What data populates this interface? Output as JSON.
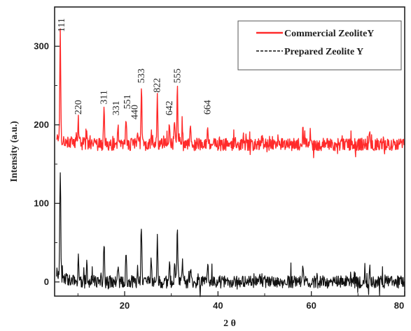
{
  "chart_data": {
    "type": "line",
    "title": "",
    "xlabel": "2 θ",
    "ylabel": "Intensity (a.u.)",
    "xlim": [
      5,
      80
    ],
    "ylim": [
      -18,
      350
    ],
    "x_ticks": [
      20,
      40,
      60,
      80
    ],
    "y_ticks": [
      0,
      100,
      200,
      300
    ],
    "grid": false,
    "legend_position": "top-right",
    "legend": [
      {
        "label": "Commercial ZeoliteY",
        "color": "#ff2a2a",
        "style": "solid"
      },
      {
        "label": "Prepared Zeolite Y",
        "color": "#111111",
        "style": "dashed"
      }
    ],
    "series": [
      {
        "name": "Commercial ZeoliteY",
        "color": "#ff2a2a",
        "baseline": 175,
        "peaks": [
          {
            "x": 6.2,
            "y": 313
          },
          {
            "x": 10.1,
            "y": 200
          },
          {
            "x": 11.9,
            "y": 190
          },
          {
            "x": 15.6,
            "y": 220
          },
          {
            "x": 18.6,
            "y": 200
          },
          {
            "x": 20.3,
            "y": 210
          },
          {
            "x": 22.8,
            "y": 195
          },
          {
            "x": 23.6,
            "y": 245
          },
          {
            "x": 25.7,
            "y": 190
          },
          {
            "x": 27.0,
            "y": 235
          },
          {
            "x": 29.6,
            "y": 200
          },
          {
            "x": 30.7,
            "y": 210
          },
          {
            "x": 31.3,
            "y": 245
          },
          {
            "x": 32.4,
            "y": 198
          },
          {
            "x": 34.1,
            "y": 195
          },
          {
            "x": 37.8,
            "y": 200
          },
          {
            "x": 58.2,
            "y": 196
          },
          {
            "x": 72.5,
            "y": 190
          }
        ]
      },
      {
        "name": "Prepared Zeolite Y",
        "color": "#111111",
        "baseline": 0,
        "peaks": [
          {
            "x": 6.2,
            "y": 140
          },
          {
            "x": 10.1,
            "y": 30
          },
          {
            "x": 11.9,
            "y": 20
          },
          {
            "x": 15.6,
            "y": 45
          },
          {
            "x": 18.6,
            "y": 25
          },
          {
            "x": 20.3,
            "y": 35
          },
          {
            "x": 22.8,
            "y": 20
          },
          {
            "x": 23.6,
            "y": 70
          },
          {
            "x": 25.7,
            "y": 20
          },
          {
            "x": 27.0,
            "y": 58
          },
          {
            "x": 29.6,
            "y": 25
          },
          {
            "x": 30.7,
            "y": 30
          },
          {
            "x": 31.3,
            "y": 70
          },
          {
            "x": 32.4,
            "y": 22
          },
          {
            "x": 34.1,
            "y": 18
          },
          {
            "x": 37.8,
            "y": 25
          },
          {
            "x": 58.2,
            "y": 22
          },
          {
            "x": 72.5,
            "y": 15
          }
        ]
      }
    ],
    "annotations": [
      {
        "text": "111",
        "x": 6.5,
        "y": 318
      },
      {
        "text": "220",
        "x": 10.1,
        "y": 213
      },
      {
        "text": "311",
        "x": 15.6,
        "y": 226
      },
      {
        "text": "331",
        "x": 18.2,
        "y": 212
      },
      {
        "text": "551",
        "x": 20.6,
        "y": 220
      },
      {
        "text": "440",
        "x": 22.2,
        "y": 207
      },
      {
        "text": "533",
        "x": 23.6,
        "y": 253
      },
      {
        "text": "822",
        "x": 27.0,
        "y": 241
      },
      {
        "text": "642",
        "x": 29.6,
        "y": 212
      },
      {
        "text": "555",
        "x": 31.3,
        "y": 253
      },
      {
        "text": "664",
        "x": 37.8,
        "y": 213
      }
    ]
  }
}
